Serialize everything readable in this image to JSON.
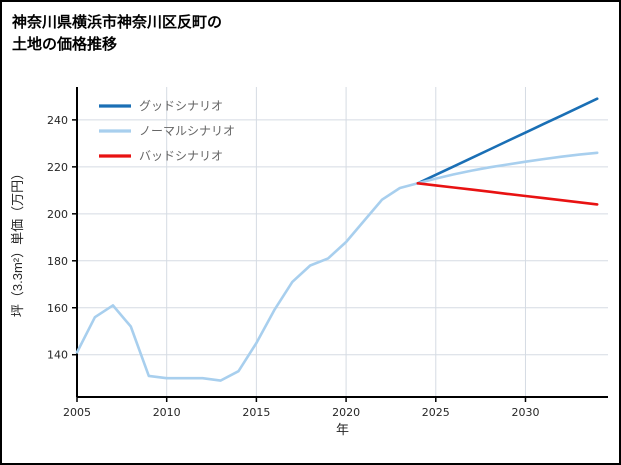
{
  "title": {
    "line1": "神奈川県横浜市神奈川区反町の",
    "line2": "土地の価格推移"
  },
  "chart_data": {
    "type": "line",
    "title": "神奈川県横浜市神奈川区反町の土地の価格推移",
    "xlabel": "年",
    "ylabel": "坪（3.3m²）単価（万円）",
    "xlim": [
      2005,
      2034.6
    ],
    "ylim": [
      122,
      254
    ],
    "xticks": [
      2005,
      2010,
      2015,
      2020,
      2025,
      2030
    ],
    "yticks": [
      140,
      160,
      180,
      200,
      220,
      240
    ],
    "grid": true,
    "legend_position": "upper-left",
    "colors": {
      "grid": "#d5dbe3",
      "axis": "#000000",
      "tick_label": "#262626",
      "legend_label": "#666666"
    },
    "series": [
      {
        "id": "history",
        "legend": false,
        "color": "#a8cfee",
        "x": [
          2005,
          2006,
          2007,
          2008,
          2009,
          2010,
          2011,
          2012,
          2013,
          2014,
          2015,
          2016,
          2017,
          2018,
          2019,
          2020,
          2021,
          2022,
          2023,
          2024
        ],
        "y": [
          141,
          156,
          161,
          152,
          131,
          130,
          130,
          130,
          129,
          133,
          145,
          159,
          171,
          178,
          181,
          188,
          197,
          206,
          211,
          213
        ]
      },
      {
        "id": "good-scenario",
        "name": "グッドシナリオ",
        "legend": true,
        "color": "#1a6fb5",
        "x": [
          2024,
          2025,
          2026,
          2027,
          2028,
          2029,
          2030,
          2031,
          2032,
          2033,
          2034
        ],
        "y": [
          213,
          216.6,
          220.2,
          223.8,
          227.4,
          231,
          234.6,
          238.2,
          241.8,
          245.4,
          249
        ]
      },
      {
        "id": "normal-scenario",
        "name": "ノーマルシナリオ",
        "legend": true,
        "color": "#a8cfee",
        "x": [
          2024,
          2025,
          2026,
          2027,
          2028,
          2029,
          2030,
          2031,
          2032,
          2033,
          2034
        ],
        "y": [
          213,
          215,
          216.8,
          218.4,
          219.8,
          221,
          222.2,
          223.3,
          224.3,
          225.2,
          226
        ]
      },
      {
        "id": "bad-scenario",
        "name": "バッドシナリオ",
        "legend": true,
        "color": "#e81212",
        "x": [
          2024,
          2025,
          2026,
          2027,
          2028,
          2029,
          2030,
          2031,
          2032,
          2033,
          2034
        ],
        "y": [
          213,
          212.1,
          211.2,
          210.3,
          209.4,
          208.5,
          207.6,
          206.7,
          205.8,
          204.9,
          204
        ]
      }
    ]
  }
}
